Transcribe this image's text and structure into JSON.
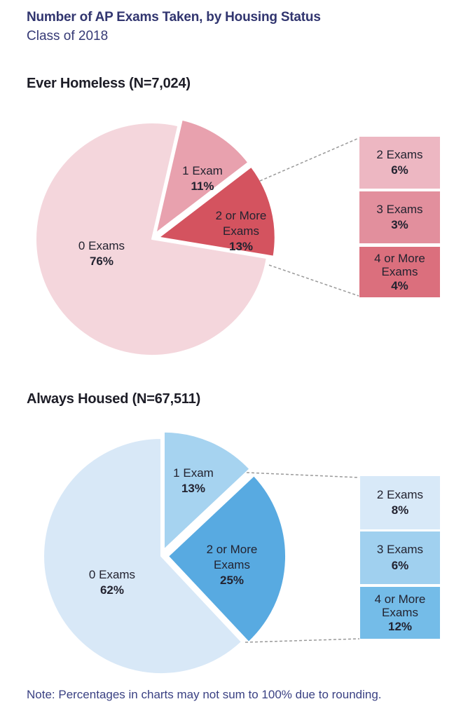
{
  "page": {
    "title": "Number of AP Exams Taken, by Housing Status",
    "subtitle": "Class of 2018",
    "note": "Note: Percentages in charts may not sum to 100% due to rounding."
  },
  "colors": {
    "title_text": "#31356f",
    "heading_text": "#1d1d27",
    "label_text": "#232330",
    "note_text": "#3a4183",
    "connector_line": "#999999",
    "background": "#ffffff"
  },
  "chart_data": [
    {
      "type": "pie",
      "title": "Ever Homeless (N=7,024)",
      "n": "7,024",
      "units": "percent",
      "start": "top, clockwise",
      "rotation_deg": 13,
      "slices": [
        {
          "label": "1 Exam",
          "value": 11,
          "display": "11%",
          "color": "#e8a1ae",
          "exploded": true
        },
        {
          "label": "2 or More Exams",
          "value": 13,
          "display": "13%",
          "color": "#d4535f",
          "exploded": true
        },
        {
          "label": "0 Exams",
          "value": 76,
          "display": "76%",
          "color": "#f4d6dc",
          "exploded": false
        }
      ],
      "breakout_of": "2 or More Exams",
      "breakout": [
        {
          "label": "2 Exams",
          "value": 6,
          "display": "6%",
          "color": "#edb7c2"
        },
        {
          "label": "3 Exams",
          "value": 3,
          "display": "3%",
          "color": "#e28f9d"
        },
        {
          "label": "4 or More Exams",
          "value": 4,
          "display": "4%",
          "color": "#db6f7d"
        }
      ]
    },
    {
      "type": "pie",
      "title": "Always Housed (N=67,511)",
      "n": "67,511",
      "units": "percent",
      "start": "top, clockwise",
      "rotation_deg": 0,
      "slices": [
        {
          "label": "1 Exam",
          "value": 13,
          "display": "13%",
          "color": "#a6d3f0",
          "exploded": true
        },
        {
          "label": "2 or More Exams",
          "value": 25,
          "display": "25%",
          "color": "#58aae1",
          "exploded": true
        },
        {
          "label": "0 Exams",
          "value": 62,
          "display": "62%",
          "color": "#d8e8f7",
          "exploded": false
        }
      ],
      "breakout_of": "2 or More Exams",
      "breakout": [
        {
          "label": "2 Exams",
          "value": 8,
          "display": "8%",
          "color": "#d8e9f8"
        },
        {
          "label": "3 Exams",
          "value": 6,
          "display": "6%",
          "color": "#a0d0ef"
        },
        {
          "label": "4 or More Exams",
          "value": 12,
          "display": "12%",
          "color": "#74bce8"
        }
      ]
    }
  ]
}
